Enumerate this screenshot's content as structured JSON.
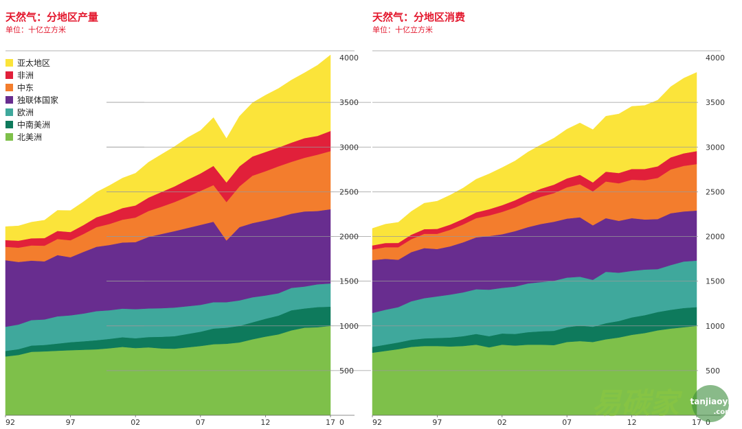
{
  "chart_data": [
    {
      "type": "area",
      "stacked": true,
      "title": "天然气：分地区产量",
      "subtitle": "单位：十亿立方米",
      "x": [
        1992,
        1993,
        1994,
        1995,
        1996,
        1997,
        1998,
        1999,
        2000,
        2001,
        2002,
        2003,
        2004,
        2005,
        2006,
        2007,
        2008,
        2009,
        2010,
        2011,
        2012,
        2013,
        2014,
        2015,
        2016,
        2017
      ],
      "xticks": [
        "92",
        "97",
        "02",
        "07",
        "12",
        "17"
      ],
      "ylim": [
        0,
        4000
      ],
      "yticks": [
        "0",
        "500",
        "1000",
        "1500",
        "2000",
        "2500",
        "3000",
        "3500",
        "4000"
      ],
      "legend": "top-left",
      "series": [
        {
          "name": "北美洲",
          "color": "#7ec04a",
          "values": [
            658,
            675,
            710,
            715,
            722,
            728,
            733,
            738,
            750,
            765,
            752,
            760,
            748,
            745,
            760,
            775,
            795,
            800,
            815,
            850,
            880,
            905,
            950,
            980,
            985,
            1000
          ]
        },
        {
          "name": "中南美洲",
          "color": "#0e7a5c",
          "values": [
            62,
            65,
            70,
            72,
            80,
            90,
            95,
            102,
            105,
            108,
            110,
            115,
            130,
            140,
            150,
            160,
            175,
            180,
            185,
            190,
            200,
            210,
            225,
            215,
            225,
            215
          ]
        },
        {
          "name": "欧洲",
          "color": "#3fa89c",
          "values": [
            270,
            275,
            285,
            285,
            305,
            300,
            310,
            325,
            320,
            320,
            325,
            320,
            320,
            320,
            310,
            300,
            295,
            285,
            285,
            280,
            260,
            250,
            250,
            245,
            255,
            260
          ]
        },
        {
          "name": "独联体国家",
          "color": "#682d8f",
          "values": [
            745,
            700,
            665,
            650,
            685,
            650,
            690,
            720,
            730,
            740,
            750,
            800,
            830,
            855,
            875,
            895,
            900,
            690,
            820,
            830,
            840,
            850,
            830,
            840,
            820,
            830
          ]
        },
        {
          "name": "中东",
          "color": "#f37d2d",
          "values": [
            150,
            160,
            170,
            175,
            180,
            190,
            200,
            220,
            235,
            255,
            275,
            290,
            305,
            325,
            350,
            380,
            410,
            430,
            455,
            530,
            550,
            570,
            580,
            600,
            630,
            650
          ]
        },
        {
          "name": "非洲",
          "color": "#e1203a",
          "values": [
            75,
            78,
            80,
            85,
            90,
            92,
            100,
            110,
            120,
            130,
            135,
            150,
            165,
            175,
            190,
            195,
            215,
            220,
            225,
            215,
            215,
            210,
            215,
            220,
            210,
            225
          ]
        },
        {
          "name": "亚太地区",
          "color": "#fbe43a",
          "values": [
            150,
            165,
            180,
            200,
            230,
            240,
            260,
            280,
            310,
            335,
            360,
            395,
            420,
            445,
            470,
            480,
            540,
            490,
            560,
            600,
            635,
            660,
            700,
            730,
            790,
            850
          ]
        }
      ]
    },
    {
      "type": "area",
      "stacked": true,
      "title": "天然气：分地区消费",
      "subtitle": "单位：十亿立方米",
      "x": [
        1992,
        1993,
        1994,
        1995,
        1996,
        1997,
        1998,
        1999,
        2000,
        2001,
        2002,
        2003,
        2004,
        2005,
        2006,
        2007,
        2008,
        2009,
        2010,
        2011,
        2012,
        2013,
        2014,
        2015,
        2016,
        2017
      ],
      "xticks": [
        "92",
        "97",
        "02",
        "07",
        "12",
        "17"
      ],
      "ylim": [
        0,
        4000
      ],
      "yticks": [
        "0",
        "500",
        "1000",
        "1500",
        "2000",
        "2500",
        "3000",
        "3500",
        "4000"
      ],
      "series": [
        {
          "name": "北美洲",
          "color": "#7ec04a",
          "values": [
            700,
            720,
            740,
            765,
            775,
            775,
            770,
            775,
            790,
            760,
            790,
            780,
            790,
            790,
            785,
            820,
            830,
            820,
            850,
            870,
            900,
            920,
            950,
            970,
            985,
            1000
          ]
        },
        {
          "name": "中南美洲",
          "color": "#0e7a5c",
          "values": [
            65,
            70,
            75,
            80,
            85,
            90,
            100,
            110,
            120,
            125,
            125,
            130,
            140,
            150,
            160,
            165,
            175,
            170,
            180,
            185,
            195,
            200,
            205,
            210,
            215,
            210
          ]
        },
        {
          "name": "欧洲",
          "color": "#3fa89c",
          "values": [
            380,
            390,
            395,
            430,
            450,
            465,
            480,
            490,
            500,
            520,
            510,
            530,
            545,
            550,
            560,
            555,
            545,
            525,
            575,
            540,
            520,
            510,
            480,
            500,
            520,
            520
          ]
        },
        {
          "name": "独联体国家",
          "color": "#682d8f",
          "values": [
            590,
            570,
            530,
            550,
            560,
            530,
            540,
            560,
            580,
            600,
            600,
            620,
            630,
            650,
            660,
            660,
            665,
            610,
            600,
            580,
            590,
            560,
            560,
            580,
            560,
            560
          ]
        },
        {
          "name": "中东",
          "color": "#f37d2d",
          "values": [
            120,
            130,
            140,
            145,
            160,
            170,
            185,
            200,
            215,
            230,
            250,
            265,
            285,
            305,
            320,
            350,
            370,
            380,
            410,
            420,
            430,
            440,
            460,
            490,
            510,
            520
          ]
        },
        {
          "name": "非洲",
          "color": "#e1203a",
          "values": [
            45,
            47,
            48,
            50,
            52,
            55,
            58,
            62,
            65,
            70,
            75,
            80,
            85,
            90,
            95,
            100,
            105,
            100,
            110,
            115,
            120,
            125,
            130,
            135,
            140,
            145
          ]
        },
        {
          "name": "亚太地区",
          "color": "#fbe43a",
          "values": [
            190,
            210,
            230,
            260,
            290,
            310,
            330,
            345,
            370,
            395,
            420,
            440,
            470,
            490,
            520,
            550,
            580,
            590,
            620,
            660,
            700,
            710,
            740,
            790,
            840,
            880
          ]
        }
      ]
    }
  ],
  "watermark": {
    "brand": "易碳家",
    "domain": "tanjiaoyi",
    "suffix": ".com"
  }
}
